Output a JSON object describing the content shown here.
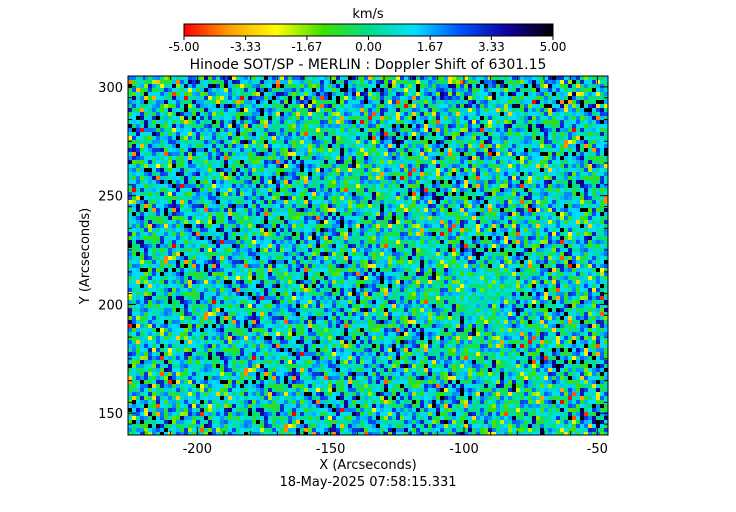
{
  "chart_data": {
    "type": "heatmap",
    "title": "Hinode SOT/SP - MERLIN : Doppler Shift of 6301.15",
    "xlabel": "X (Arcseconds)",
    "ylabel": "Y (Arcseconds)",
    "xlim": [
      -226,
      -46
    ],
    "ylim": [
      140,
      305
    ],
    "x_ticks": [
      -200,
      -150,
      -100,
      -50
    ],
    "x_tick_labels": [
      "-200",
      "-150",
      "-100",
      "-50"
    ],
    "y_ticks": [
      150,
      200,
      250,
      300
    ],
    "y_tick_labels": [
      "150",
      "200",
      "250",
      "300"
    ],
    "colorbar": {
      "label": "km/s",
      "range": [
        -5.0,
        5.0
      ],
      "ticks": [
        -5.0,
        -3.33,
        -1.67,
        0.0,
        1.67,
        3.33,
        5.0
      ],
      "tick_labels": [
        "-5.00",
        "-3.33",
        "-1.67",
        "0.00",
        "1.67",
        "3.33",
        "5.00"
      ],
      "colormap": [
        "#ff0000",
        "#ffa000",
        "#ffff00",
        "#40e000",
        "#00dd88",
        "#00e0ff",
        "#0050ff",
        "#1000a0",
        "#000000"
      ]
    },
    "features": [
      {
        "x": -90,
        "y": 205,
        "r": 17,
        "value": 0.3
      },
      {
        "x": -200,
        "y": 262,
        "r": 5,
        "value": 1.9
      }
    ],
    "background_mean": 0.8,
    "background_spread": 2.6
  },
  "footer": {
    "timestamp": "18-May-2025 07:58:15.331"
  }
}
